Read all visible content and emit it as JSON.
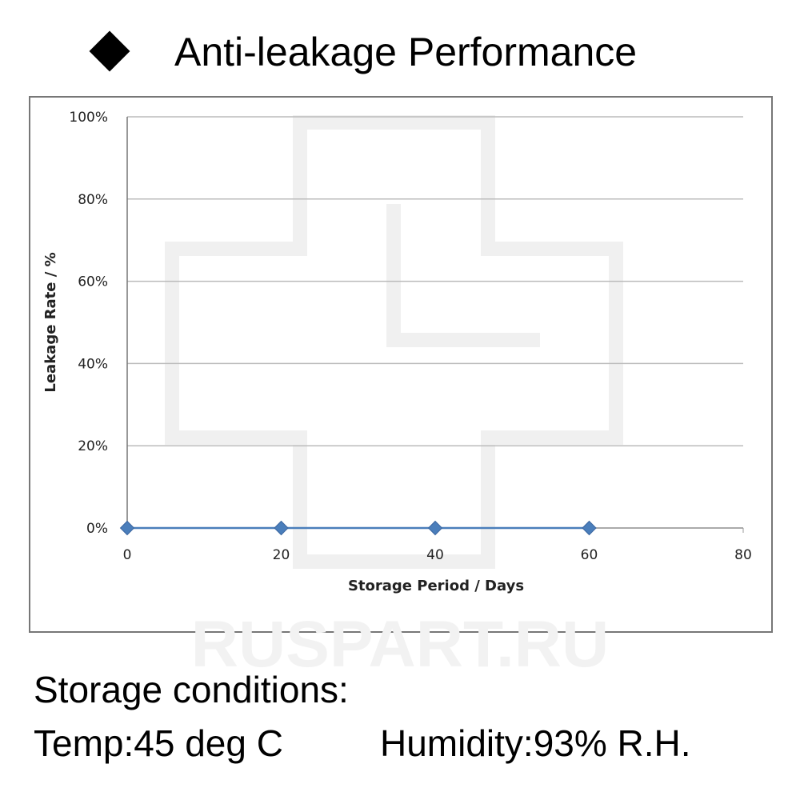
{
  "chart_data": {
    "type": "line",
    "title": "Anti-leakage Performance",
    "x": [
      0,
      20,
      40,
      60
    ],
    "values": [
      0,
      0,
      0,
      0
    ],
    "color": "#4a7ebb",
    "xlim": [
      0,
      80
    ],
    "xticks": [
      0,
      20,
      40,
      60,
      80
    ],
    "ylim": [
      0,
      100
    ],
    "yticks": [
      {
        "value": 0,
        "label": "0%"
      },
      {
        "value": 20,
        "label": "20%"
      },
      {
        "value": 40,
        "label": "40%"
      },
      {
        "value": 60,
        "label": "60%"
      },
      {
        "value": 80,
        "label": "80%"
      },
      {
        "value": 100,
        "label": "100%"
      }
    ],
    "grid": true,
    "xlabel": "Storage Period / Days",
    "ylabel": "Leakage Rate / %"
  },
  "watermark": "RUSPART.RU",
  "footer": {
    "heading": "Storage conditions:",
    "temp": "Temp:45 deg C",
    "humidity": "Humidity:93% R.H."
  }
}
